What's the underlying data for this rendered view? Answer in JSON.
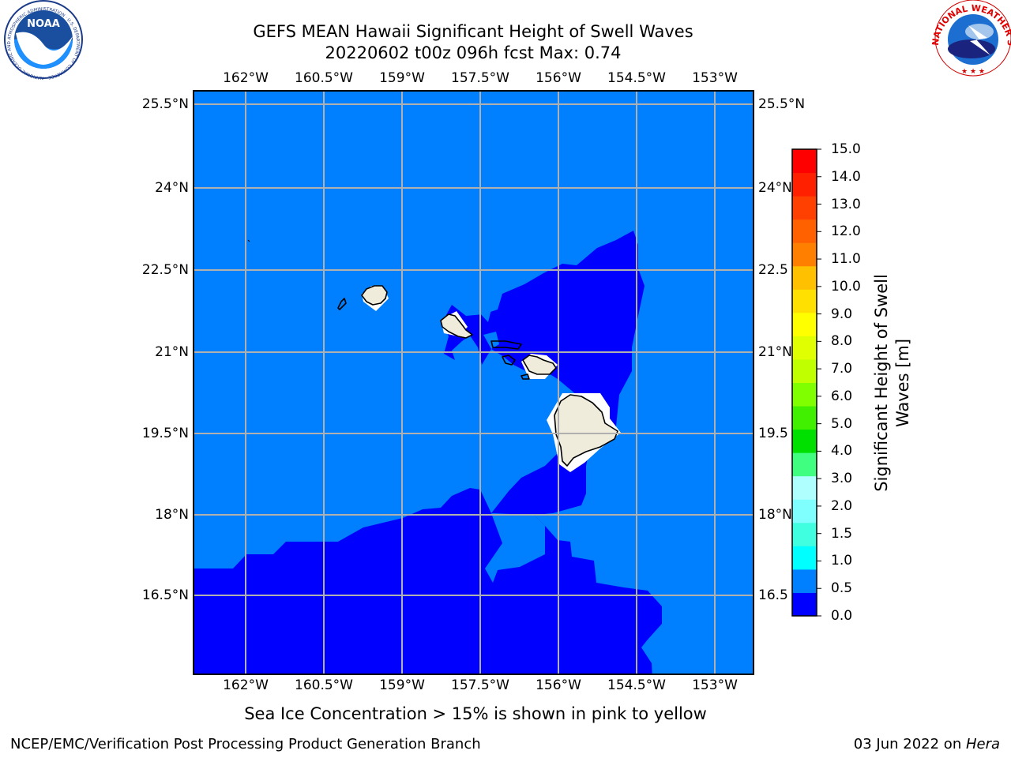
{
  "title_line1": "GEFS MEAN Hawaii Significant Height of Swell Waves",
  "title_line2": "20220602 t00z 096h fcst   Max: 0.74",
  "logos": {
    "noaa": {
      "text": "NOAA",
      "ring_text": "NATIONAL OCEANIC AND ATMOSPHERIC ADMINISTRATION · U.S. DEPARTMENT OF COMMERCE ·"
    },
    "nws": {
      "ring_text": "NATIONAL WEATHER SERVICE"
    }
  },
  "map": {
    "lon_ticks": [
      "162°W",
      "160.5°W",
      "159°W",
      "157.5°W",
      "156°W",
      "154.5°W",
      "153°W"
    ],
    "lat_ticks": [
      "25.5°N",
      "24°N",
      "22.5°N",
      "21°N",
      "19.5°N",
      "18°N",
      "16.5°N"
    ],
    "right_lat_ticks": [
      "25.5°N",
      "24°N",
      "22.5",
      "21°N",
      "19.5",
      "18°N",
      "16.5"
    ],
    "colors": {
      "ocean_low": "#0000ff",
      "ocean_mid": "#0080ff",
      "land": "#efecdb",
      "grid": "#b0b0b0"
    }
  },
  "colorbar": {
    "label": "Significant Height of Swell Waves [m]",
    "ticks": [
      "15.0",
      "14.0",
      "13.0",
      "12.0",
      "11.0",
      "10.0",
      "9.0",
      "8.0",
      "7.0",
      "6.0",
      "5.0",
      "4.0",
      "3.0",
      "2.0",
      "1.5",
      "1.0",
      "0.5",
      "0.0"
    ],
    "colors": [
      "#0000ff",
      "#0080ff",
      "#00ffff",
      "#40ffe0",
      "#80ffff",
      "#b0ffff",
      "#40ff80",
      "#00e000",
      "#40f000",
      "#80ff00",
      "#c0ff00",
      "#e0ff00",
      "#ffff00",
      "#ffe000",
      "#ffc000",
      "#ff8000",
      "#ff6000",
      "#ff4000",
      "#ff2000",
      "#ff0000"
    ]
  },
  "footer": {
    "note": "Sea Ice Concentration > 15% is shown in pink to yellow",
    "left": "NCEP/EMC/Verification Post Processing Product Generation Branch",
    "right_date": "03 Jun 2022 on ",
    "right_machine": "Hera"
  }
}
